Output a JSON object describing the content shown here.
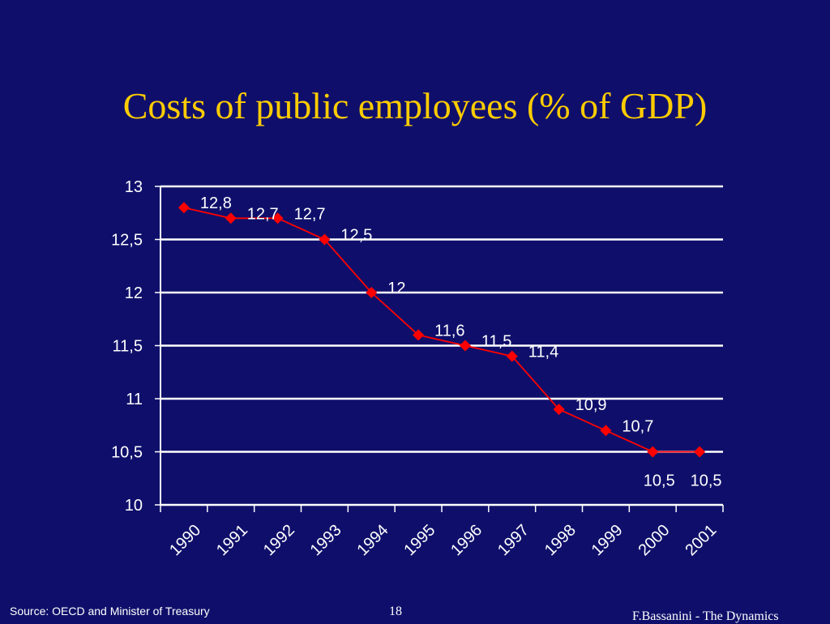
{
  "slide": {
    "title": "Costs of public employees (% of GDP)",
    "source": "Source: OECD and Minister of Treasury",
    "page_number": "18",
    "author": "F.Bassanini - The Dynamics"
  },
  "colors": {
    "background": "#0f0f6b",
    "title": "#ffcc00",
    "series": "#ff0000",
    "axis": "#ffffff"
  },
  "chart_data": {
    "type": "line",
    "x": [
      "1990",
      "1991",
      "1992",
      "1993",
      "1994",
      "1995",
      "1996",
      "1997",
      "1998",
      "1999",
      "2000",
      "2001"
    ],
    "series": [
      {
        "values": [
          12.8,
          12.7,
          12.7,
          12.5,
          12,
          11.6,
          11.5,
          11.4,
          10.9,
          10.7,
          10.5,
          10.5
        ],
        "labels": [
          "12,8",
          "12,7",
          "12,7",
          "12,5",
          "12",
          "11,6",
          "11,5",
          "11,4",
          "10,9",
          "10,7",
          "10,5",
          "10,5"
        ],
        "marker": "diamond"
      }
    ],
    "y_ticks": [
      10,
      10.5,
      11,
      11.5,
      12,
      12.5,
      13
    ],
    "y_tick_labels": [
      "10",
      "10,5",
      "11",
      "11,5",
      "12",
      "12,5",
      "13"
    ],
    "ylim": [
      10,
      13
    ],
    "grid": true,
    "legend": "none"
  }
}
